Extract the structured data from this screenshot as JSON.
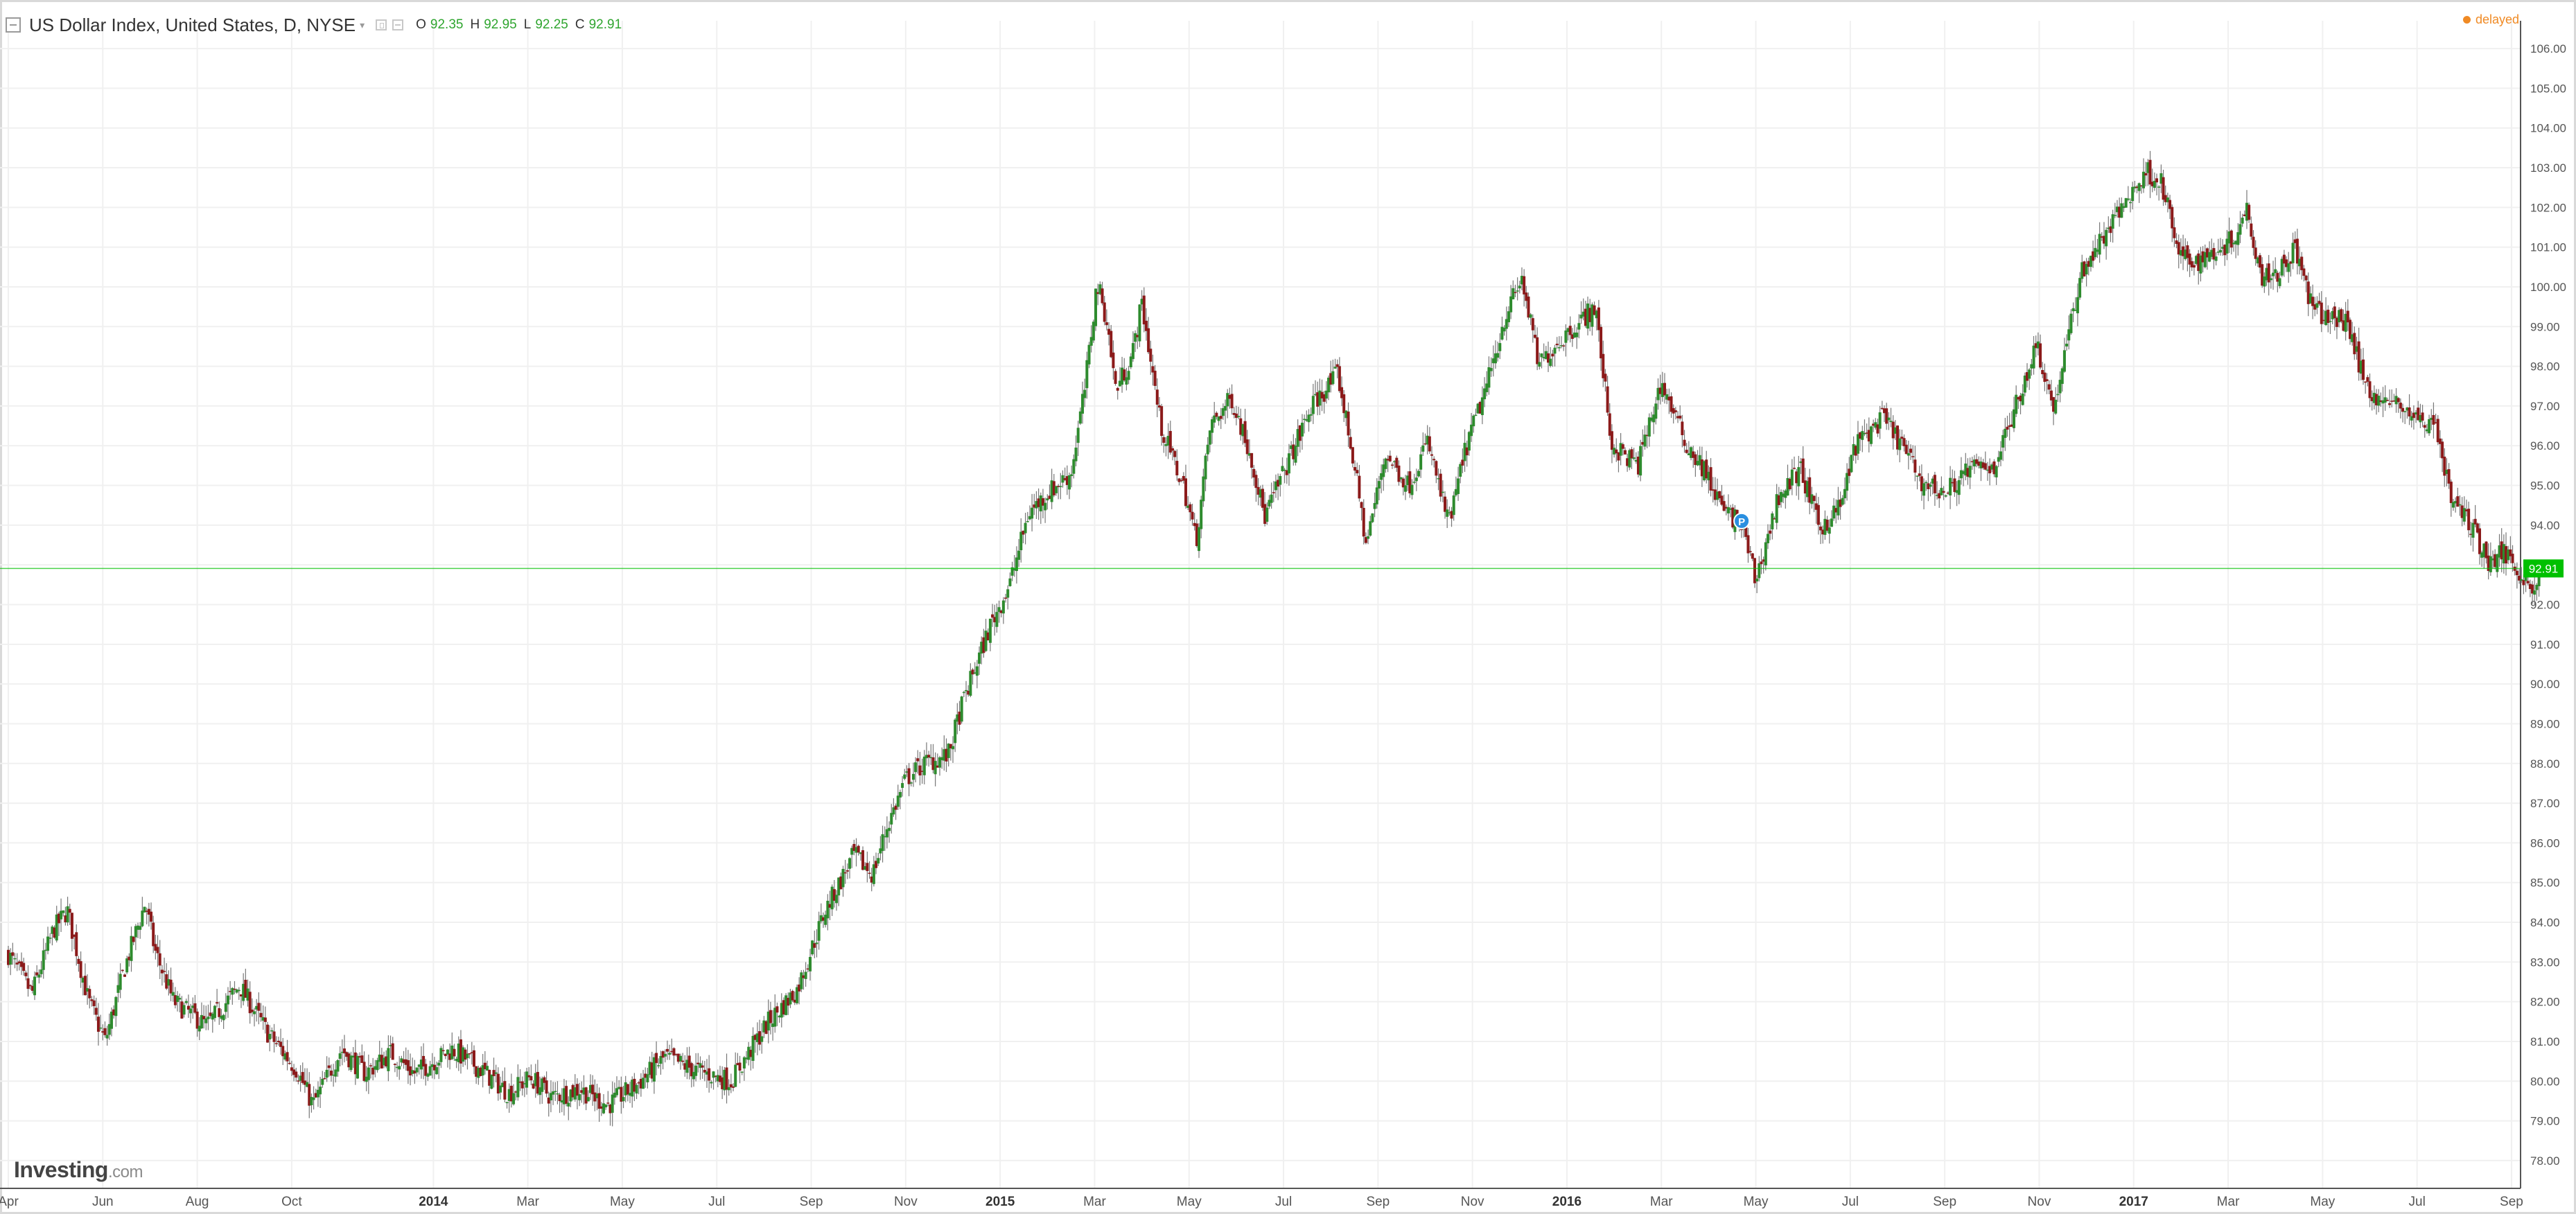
{
  "header": {
    "title": "US Dollar Index, United States, D, NYSE",
    "ohlc": [
      {
        "key": "O",
        "value": "92.35"
      },
      {
        "key": "H",
        "value": "92.95"
      },
      {
        "key": "L",
        "value": "92.25"
      },
      {
        "key": "C",
        "value": "92.91"
      }
    ],
    "status": "delayed"
  },
  "branding": {
    "logo": "Investing",
    "suffix": ".com"
  },
  "colors": {
    "up": "#2e8b2e",
    "down": "#8b1a1a",
    "wick": "#777777",
    "last_price": "#00c000",
    "grid": "#f0f0f0",
    "status": "#f08a24"
  },
  "chart_data": {
    "type": "candlestick",
    "title": "",
    "xlabel": "",
    "ylabel": "",
    "ylim": [
      77.3,
      106.7
    ],
    "y_ticks": [
      "78.00",
      "79.00",
      "80.00",
      "81.00",
      "82.00",
      "83.00",
      "84.00",
      "85.00",
      "86.00",
      "87.00",
      "88.00",
      "89.00",
      "90.00",
      "91.00",
      "92.00",
      "93.00",
      "94.00",
      "95.00",
      "96.00",
      "97.00",
      "98.00",
      "99.00",
      "100.00",
      "101.00",
      "102.00",
      "103.00",
      "104.00",
      "105.00",
      "106.00"
    ],
    "x_ticks": [
      {
        "label": "Apr",
        "month_index": 0,
        "major": false
      },
      {
        "label": "Jun",
        "month_index": 2,
        "major": false
      },
      {
        "label": "Aug",
        "month_index": 4,
        "major": false
      },
      {
        "label": "Oct",
        "month_index": 6,
        "major": false
      },
      {
        "label": "2014",
        "month_index": 9,
        "major": true
      },
      {
        "label": "Mar",
        "month_index": 11,
        "major": false
      },
      {
        "label": "May",
        "month_index": 13,
        "major": false
      },
      {
        "label": "Jul",
        "month_index": 15,
        "major": false
      },
      {
        "label": "Sep",
        "month_index": 17,
        "major": false
      },
      {
        "label": "Nov",
        "month_index": 19,
        "major": false
      },
      {
        "label": "2015",
        "month_index": 21,
        "major": true
      },
      {
        "label": "Mar",
        "month_index": 23,
        "major": false
      },
      {
        "label": "May",
        "month_index": 25,
        "major": false
      },
      {
        "label": "Jul",
        "month_index": 27,
        "major": false
      },
      {
        "label": "Sep",
        "month_index": 29,
        "major": false
      },
      {
        "label": "Nov",
        "month_index": 31,
        "major": false
      },
      {
        "label": "2016",
        "month_index": 33,
        "major": true
      },
      {
        "label": "Mar",
        "month_index": 35,
        "major": false
      },
      {
        "label": "May",
        "month_index": 37,
        "major": false
      },
      {
        "label": "Jul",
        "month_index": 39,
        "major": false
      },
      {
        "label": "Sep",
        "month_index": 41,
        "major": false
      },
      {
        "label": "Nov",
        "month_index": 43,
        "major": false
      },
      {
        "label": "2017",
        "month_index": 45,
        "major": true
      },
      {
        "label": "Mar",
        "month_index": 47,
        "major": false
      },
      {
        "label": "May",
        "month_index": 49,
        "major": false
      },
      {
        "label": "Jul",
        "month_index": 51,
        "major": false
      },
      {
        "label": "Sep",
        "month_index": 53,
        "major": false
      }
    ],
    "price_path": [
      [
        0.0,
        83.2
      ],
      [
        0.5,
        82.2
      ],
      [
        0.95,
        83.8
      ],
      [
        1.25,
        84.3
      ],
      [
        1.7,
        82.0
      ],
      [
        2.05,
        81.0
      ],
      [
        2.45,
        82.8
      ],
      [
        2.9,
        84.5
      ],
      [
        3.1,
        83.3
      ],
      [
        3.5,
        82.0
      ],
      [
        4.2,
        81.4
      ],
      [
        4.9,
        82.4
      ],
      [
        5.5,
        81.2
      ],
      [
        6.1,
        80.3
      ],
      [
        6.45,
        79.4
      ],
      [
        7.05,
        80.8
      ],
      [
        7.55,
        80.2
      ],
      [
        8.1,
        80.7
      ],
      [
        8.6,
        80.2
      ],
      [
        9.4,
        80.8
      ],
      [
        10.0,
        80.3
      ],
      [
        10.6,
        79.7
      ],
      [
        11.05,
        80.1
      ],
      [
        11.5,
        79.6
      ],
      [
        12.1,
        79.8
      ],
      [
        12.7,
        79.4
      ],
      [
        13.3,
        79.9
      ],
      [
        13.9,
        80.6
      ],
      [
        14.5,
        80.3
      ],
      [
        15.3,
        80.0
      ],
      [
        16.1,
        81.5
      ],
      [
        16.7,
        82.3
      ],
      [
        17.3,
        84.3
      ],
      [
        17.9,
        85.7
      ],
      [
        18.3,
        85.2
      ],
      [
        18.6,
        86.4
      ],
      [
        19.0,
        87.6
      ],
      [
        19.4,
        88.0
      ],
      [
        19.9,
        88.2
      ],
      [
        20.2,
        89.5
      ],
      [
        20.8,
        91.5
      ],
      [
        21.2,
        92.5
      ],
      [
        21.6,
        94.3
      ],
      [
        22.0,
        94.8
      ],
      [
        22.5,
        95.3
      ],
      [
        22.8,
        97.5
      ],
      [
        23.05,
        100.1
      ],
      [
        23.25,
        99.2
      ],
      [
        23.45,
        97.4
      ],
      [
        23.8,
        98.3
      ],
      [
        24.0,
        99.6
      ],
      [
        24.4,
        96.5
      ],
      [
        24.9,
        94.9
      ],
      [
        25.15,
        93.6
      ],
      [
        25.45,
        96.5
      ],
      [
        25.9,
        97.2
      ],
      [
        26.3,
        95.8
      ],
      [
        26.6,
        94.2
      ],
      [
        27.1,
        95.6
      ],
      [
        27.6,
        97.0
      ],
      [
        28.15,
        97.8
      ],
      [
        28.5,
        95.5
      ],
      [
        28.75,
        93.5
      ],
      [
        29.15,
        95.8
      ],
      [
        29.65,
        95.0
      ],
      [
        30.05,
        96.1
      ],
      [
        30.5,
        94.0
      ],
      [
        30.85,
        95.9
      ],
      [
        31.3,
        97.5
      ],
      [
        31.7,
        99.3
      ],
      [
        32.05,
        100.2
      ],
      [
        32.4,
        98.0
      ],
      [
        32.8,
        98.6
      ],
      [
        33.25,
        99.1
      ],
      [
        33.6,
        99.5
      ],
      [
        33.95,
        96.0
      ],
      [
        34.5,
        95.5
      ],
      [
        35.0,
        97.6
      ],
      [
        35.5,
        96.1
      ],
      [
        35.9,
        95.4
      ],
      [
        36.3,
        94.4
      ],
      [
        36.7,
        94.0
      ],
      [
        37.0,
        92.6
      ],
      [
        37.5,
        94.8
      ],
      [
        37.95,
        95.4
      ],
      [
        38.35,
        93.9
      ],
      [
        38.8,
        94.5
      ],
      [
        39.1,
        96.0
      ],
      [
        39.7,
        96.7
      ],
      [
        40.1,
        96.0
      ],
      [
        40.5,
        95.1
      ],
      [
        41.0,
        94.8
      ],
      [
        41.5,
        95.4
      ],
      [
        42.05,
        95.5
      ],
      [
        42.45,
        96.8
      ],
      [
        42.95,
        98.6
      ],
      [
        43.3,
        96.9
      ],
      [
        43.9,
        100.4
      ],
      [
        44.5,
        101.5
      ],
      [
        44.9,
        102.3
      ],
      [
        45.3,
        102.9
      ],
      [
        45.6,
        102.6
      ],
      [
        45.95,
        100.8
      ],
      [
        46.3,
        100.6
      ],
      [
        46.7,
        100.9
      ],
      [
        47.1,
        101.2
      ],
      [
        47.4,
        102.0
      ],
      [
        47.7,
        100.3
      ],
      [
        48.1,
        100.4
      ],
      [
        48.4,
        101.0
      ],
      [
        48.8,
        99.4
      ],
      [
        49.2,
        99.2
      ],
      [
        49.55,
        99.1
      ],
      [
        49.9,
        97.5
      ],
      [
        50.3,
        97.1
      ],
      [
        50.7,
        97.0
      ],
      [
        51.05,
        96.6
      ],
      [
        51.4,
        96.6
      ],
      [
        51.7,
        94.7
      ],
      [
        52.1,
        94.1
      ],
      [
        52.5,
        93.1
      ],
      [
        52.9,
        93.3
      ],
      [
        53.2,
        92.8
      ],
      [
        53.45,
        92.3
      ],
      [
        53.6,
        92.91
      ]
    ],
    "last_price": "92.91",
    "marker_label": "P",
    "marker_month_index": 36.7
  }
}
